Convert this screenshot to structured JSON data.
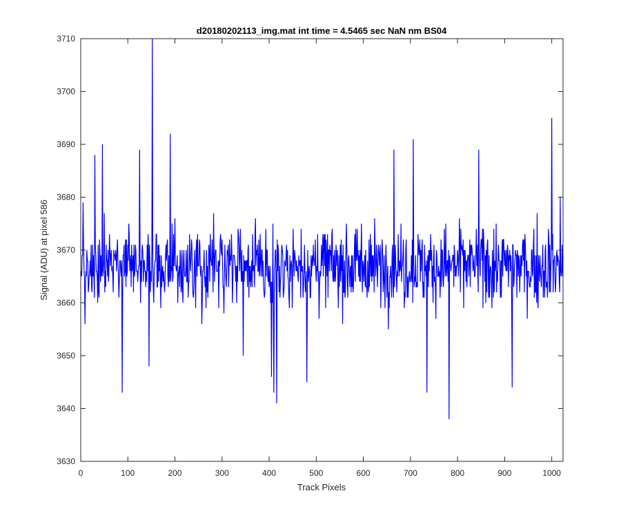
{
  "chart_data": {
    "type": "line",
    "title": "d20180202113_img.mat int time = 4.5465 sec  NaN nm BS04",
    "xlabel": "Track Pixels",
    "ylabel": "Signal (ADU) at pixel 586",
    "xlim": [
      0,
      1024
    ],
    "ylim": [
      3630,
      3710
    ],
    "xticks": [
      0,
      100,
      200,
      300,
      400,
      500,
      600,
      700,
      800,
      900,
      1000
    ],
    "yticks": [
      3630,
      3640,
      3650,
      3660,
      3670,
      3680,
      3690,
      3700,
      3710
    ],
    "grid": false,
    "series": [
      {
        "color": "#0000ff",
        "x_start": 1,
        "x_step": 1,
        "n_points": 1024,
        "baseline": 3667,
        "noise_amplitude": 7,
        "notable_points": [
          {
            "x": 5,
            "y": 3679
          },
          {
            "x": 30,
            "y": 3688
          },
          {
            "x": 46,
            "y": 3690
          },
          {
            "x": 88,
            "y": 3643
          },
          {
            "x": 125,
            "y": 3689
          },
          {
            "x": 145,
            "y": 3648
          },
          {
            "x": 152,
            "y": 3710
          },
          {
            "x": 190,
            "y": 3692
          },
          {
            "x": 345,
            "y": 3650
          },
          {
            "x": 405,
            "y": 3646
          },
          {
            "x": 410,
            "y": 3643
          },
          {
            "x": 416,
            "y": 3641
          },
          {
            "x": 480,
            "y": 3645
          },
          {
            "x": 665,
            "y": 3689
          },
          {
            "x": 706,
            "y": 3691
          },
          {
            "x": 735,
            "y": 3643
          },
          {
            "x": 782,
            "y": 3638
          },
          {
            "x": 845,
            "y": 3689
          },
          {
            "x": 916,
            "y": 3644
          },
          {
            "x": 1000,
            "y": 3695
          },
          {
            "x": 1018,
            "y": 3680
          }
        ]
      }
    ]
  }
}
